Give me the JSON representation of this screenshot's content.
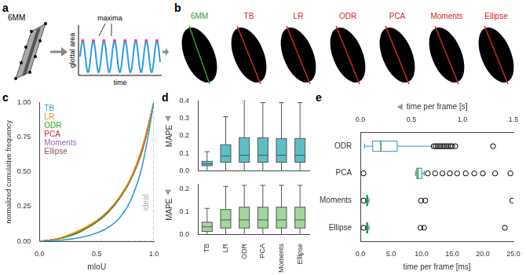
{
  "panel_labels": [
    "a",
    "b",
    "c",
    "d",
    "e"
  ],
  "panel_a": {
    "model_label": "6MM",
    "y_label": "glottal area",
    "x_label": "time",
    "annotation": "maxima"
  },
  "panel_b": {
    "labels": [
      "6MM",
      "TB",
      "LR",
      "ODR",
      "PCA",
      "Moments",
      "Ellipse"
    ]
  },
  "chart_data": [
    {
      "type": "line",
      "x_label": "mIoU",
      "y_label": "normalized cumulative frequency",
      "x": [
        0,
        0.1,
        0.2,
        0.3,
        0.4,
        0.5,
        0.6,
        0.7,
        0.8,
        0.9,
        1
      ],
      "xlim": [
        0,
        1
      ],
      "ylim": [
        0,
        1
      ],
      "xticks": [
        {
          "value": 0,
          "label": "0.0"
        },
        0.5,
        {
          "value": 1,
          "label": "1.0"
        }
      ],
      "yticks": [
        {
          "value": 0,
          "label": "0.00"
        },
        0.25,
        {
          "value": 0.5,
          "label": "0.50"
        },
        0.75,
        {
          "value": 1,
          "label": "1.00"
        }
      ],
      "grid": false,
      "legend": "upper left",
      "series": [
        {
          "name": "TB",
          "color": "#2a9fd6",
          "values": [
            0,
            0.005,
            0.01,
            0.02,
            0.035,
            0.06,
            0.1,
            0.17,
            0.3,
            0.55,
            1
          ]
        },
        {
          "name": "LR",
          "color": "#ff7f0e",
          "values": [
            0,
            0.01,
            0.03,
            0.06,
            0.1,
            0.15,
            0.22,
            0.32,
            0.46,
            0.68,
            1
          ]
        },
        {
          "name": "ODR",
          "color": "#2ca02c",
          "values": [
            0,
            0.01,
            0.025,
            0.05,
            0.09,
            0.14,
            0.21,
            0.31,
            0.45,
            0.67,
            1
          ]
        },
        {
          "name": "PCA",
          "color": "#d62728",
          "values": [
            0,
            0.01,
            0.025,
            0.05,
            0.09,
            0.14,
            0.21,
            0.31,
            0.45,
            0.66,
            1
          ]
        },
        {
          "name": "Moments",
          "color": "#9467bd",
          "values": [
            0,
            0.01,
            0.025,
            0.05,
            0.09,
            0.14,
            0.21,
            0.31,
            0.45,
            0.66,
            1
          ]
        },
        {
          "name": "Ellipse",
          "color": "#8c564b",
          "values": [
            0,
            0.01,
            0.025,
            0.05,
            0.09,
            0.145,
            0.215,
            0.315,
            0.455,
            0.67,
            1
          ]
        },
        {
          "name": "ideal",
          "color": "#aaaaaa",
          "line_style": "dashed",
          "x": [
            0,
            1,
            1
          ],
          "values": [
            0,
            0,
            1
          ]
        }
      ]
    },
    {
      "type": "box",
      "y_label": "MAPE",
      "categories": [
        "TB",
        "LR",
        "ODR",
        "PCA",
        "Moments",
        "Ellipse"
      ],
      "tick_labels": "y",
      "color": "#5bbfc6",
      "ylim": [
        0,
        0.4
      ],
      "yticks": [
        {
          "value": 0,
          "label": "0.0"
        },
        0.1,
        0.2,
        0.3,
        0.4
      ],
      "grid": false,
      "values": [
        {
          "min": 0,
          "q1": 0.03,
          "median": 0.04,
          "q3": 0.055,
          "max": 0.11
        },
        {
          "min": 0,
          "q1": 0.05,
          "median": 0.085,
          "q3": 0.15,
          "max": 0.31
        },
        {
          "min": 0,
          "q1": 0.05,
          "median": 0.09,
          "q3": 0.19,
          "max": 0.4
        },
        {
          "min": 0,
          "q1": 0.05,
          "median": 0.09,
          "q3": 0.19,
          "max": 0.39
        },
        {
          "min": 0,
          "q1": 0.05,
          "median": 0.09,
          "q3": 0.185,
          "max": 0.39
        },
        {
          "min": 0,
          "q1": 0.05,
          "median": 0.09,
          "q3": 0.185,
          "max": 0.39
        }
      ]
    },
    {
      "type": "box",
      "y_label": "MAPE",
      "categories": [
        "TB",
        "LR",
        "ODR",
        "PCA",
        "Moments",
        "Ellipse"
      ],
      "color": "#a3d69c",
      "ylim": [
        0,
        0.22
      ],
      "yticks": [
        {
          "value": 0,
          "label": "0.0"
        },
        0.1,
        0.2
      ],
      "grid": false,
      "values": [
        {
          "min": 0,
          "q1": 0.015,
          "median": 0.035,
          "q3": 0.055,
          "max": 0.115
        },
        {
          "min": 0,
          "q1": 0.03,
          "median": 0.065,
          "q3": 0.11,
          "max": 0.21
        },
        {
          "min": 0,
          "q1": 0.03,
          "median": 0.065,
          "q3": 0.12,
          "max": 0.215
        },
        {
          "min": 0,
          "q1": 0.03,
          "median": 0.065,
          "q3": 0.12,
          "max": 0.215
        },
        {
          "min": 0,
          "q1": 0.03,
          "median": 0.065,
          "q3": 0.12,
          "max": 0.215
        },
        {
          "min": 0,
          "q1": 0.03,
          "median": 0.065,
          "q3": 0.12,
          "max": 0.215
        }
      ]
    },
    {
      "type": "box",
      "orientation": "horizontal",
      "categories": [
        "ODR",
        "PCA",
        "Moments",
        "Ellipse"
      ],
      "x_label": "time per frame [ms]",
      "x2_label": "time per frame [s]",
      "xlim": [
        0,
        25
      ],
      "xticks": [
        {
          "value": 0,
          "label": "0.0"
        },
        {
          "value": 5,
          "label": "5.0"
        },
        {
          "value": 10,
          "label": "10.0"
        },
        {
          "value": 15,
          "label": "15.0"
        },
        {
          "value": 20,
          "label": "20.0"
        },
        {
          "value": 25,
          "label": "25.0"
        }
      ],
      "x2lim": [
        0,
        1.5
      ],
      "x2ticks": [
        {
          "value": 0,
          "label": "0.0"
        },
        0.5,
        {
          "value": 1,
          "label": "1.0"
        },
        1.5
      ],
      "grid": false,
      "colors": [
        "#3a8fc7",
        "#2b8a8f",
        "#2b8a8f",
        "#2b8a8f"
      ],
      "values": [
        {
          "axis": "x2",
          "min": 0.04,
          "q1": 0.12,
          "median": 0.2,
          "q3": 0.36,
          "max": 0.7,
          "outliers": [
            0.72,
            0.74,
            0.76,
            0.78,
            0.8,
            0.82,
            0.84,
            0.86,
            0.88,
            0.9,
            0.93,
            1.3
          ]
        },
        {
          "min": 9.0,
          "q1": 9.2,
          "median": 9.4,
          "q3": 10.0,
          "max": 10.4,
          "outliers": [
            0.5,
            11.0,
            12.2,
            13.4,
            14.6,
            15.8,
            17.2,
            18.6,
            20.0,
            22.0,
            24.5
          ]
        },
        {
          "min": 0.9,
          "q1": 1.0,
          "median": 1.1,
          "q3": 1.2,
          "max": 1.4,
          "outliers": [
            0.5,
            9.9,
            10.6,
            24.8
          ]
        },
        {
          "min": 0.9,
          "q1": 1.0,
          "median": 1.1,
          "q3": 1.2,
          "max": 1.4,
          "outliers": [
            0.5,
            9.8,
            10.4,
            23.6
          ]
        }
      ]
    }
  ]
}
